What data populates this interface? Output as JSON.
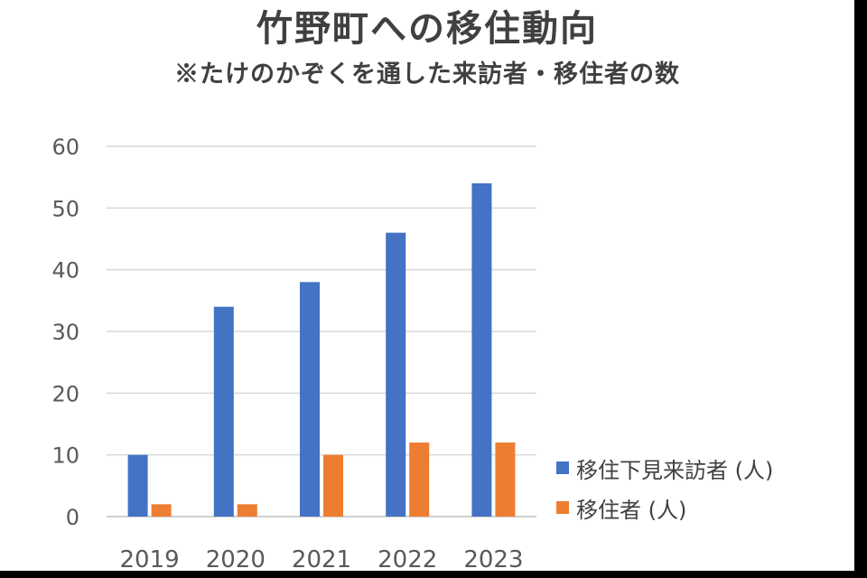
{
  "chart_data": {
    "type": "bar",
    "title": "竹野町への移住動向",
    "subtitle": "※たけのかぞくを通した来訪者・移住者の数",
    "categories": [
      "2019",
      "2020",
      "2021",
      "2022",
      "2023"
    ],
    "series": [
      {
        "name": "移住下見来訪者 (人)",
        "values": [
          10,
          34,
          38,
          46,
          54
        ],
        "color": "#4472C4"
      },
      {
        "name": "移住者 (人)",
        "values": [
          2,
          2,
          10,
          12,
          12
        ],
        "color": "#ED7D31"
      }
    ],
    "ylim": [
      0,
      60
    ],
    "yticks": [
      "0",
      "10",
      "20",
      "30",
      "40",
      "50",
      "60"
    ],
    "grid": true,
    "legend": "right"
  }
}
